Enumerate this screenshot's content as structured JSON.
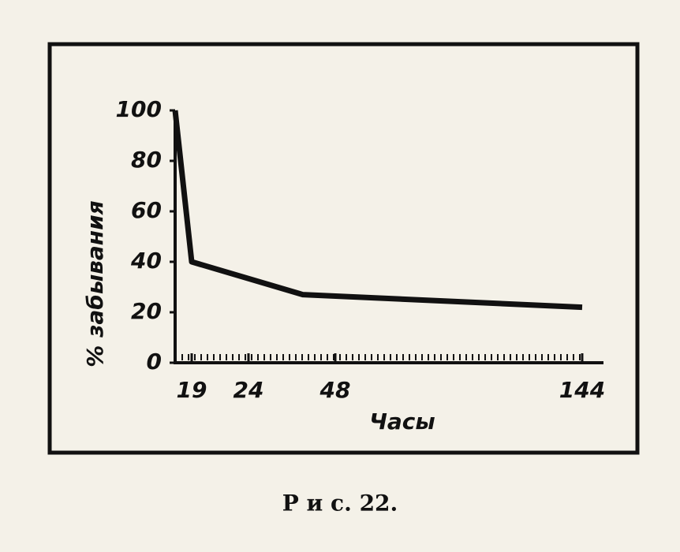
{
  "chart_data": {
    "type": "line",
    "caption": "Р и с. 22.",
    "xlabel": "Часы",
    "ylabel": "% забывания",
    "x": [
      0,
      19,
      39,
      144
    ],
    "values": [
      100,
      40,
      27,
      22
    ],
    "color": "#111111",
    "xlim": [
      0,
      144
    ],
    "xticks": [
      19,
      24,
      48,
      144
    ],
    "ylim": [
      0,
      100
    ],
    "yticks": [
      0,
      20,
      40,
      60,
      80,
      100
    ],
    "grid": false
  }
}
